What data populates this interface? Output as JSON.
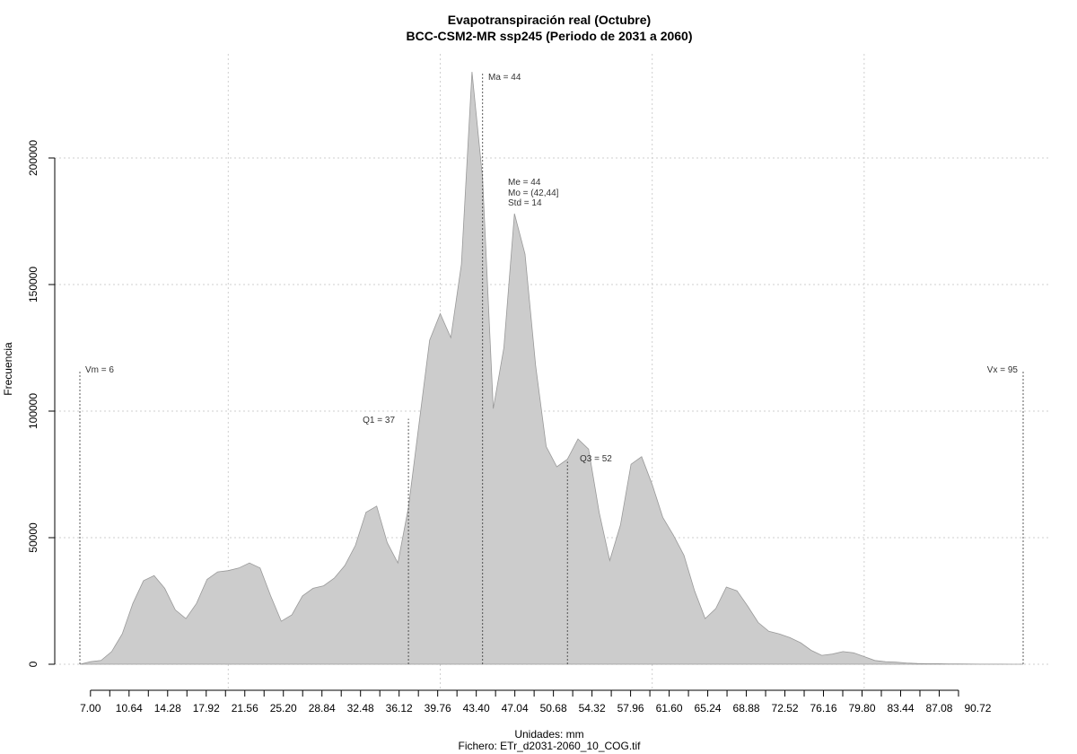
{
  "chart_data": {
    "type": "area",
    "title": "Evapotranspiración real (Octubre)",
    "subtitle": "BCC-CSM2-MR ssp245 (Periodo de 2031 a 2060)",
    "xlabel": "Unidades: mm",
    "caption": "Fichero: ETr_d2031-2060_10_COG.tif",
    "ylabel": "Frecuencia",
    "xlim": [
      5,
      97
    ],
    "ylim": [
      0,
      230000
    ],
    "grid": true,
    "fill_color": "#cccccc",
    "line_color": "#999999",
    "x_tick_labels": [
      "7.00",
      "10.64",
      "14.28",
      "17.92",
      "21.56",
      "25.20",
      "28.84",
      "32.48",
      "36.12",
      "39.76",
      "43.40",
      "47.04",
      "50.68",
      "54.32",
      "57.96",
      "61.60",
      "65.24",
      "68.88",
      "72.52",
      "76.16",
      "79.80",
      "83.44",
      "87.08",
      "90.72"
    ],
    "y_ticks": [
      0,
      50000,
      100000,
      150000,
      200000
    ],
    "y_tick_labels": [
      "0",
      "50000",
      "100000",
      "150000",
      "200000"
    ],
    "x_grid": [
      20,
      40,
      60,
      80
    ],
    "x": [
      6,
      7,
      8,
      9,
      10,
      11,
      12,
      13,
      14,
      15,
      16,
      17,
      18,
      19,
      20,
      21,
      22,
      23,
      24,
      25,
      26,
      27,
      28,
      29,
      30,
      31,
      32,
      33,
      34,
      35,
      36,
      37,
      38,
      39,
      40,
      41,
      42,
      43,
      44,
      45,
      46,
      47,
      48,
      49,
      50,
      51,
      52,
      53,
      54,
      55,
      56,
      57,
      58,
      59,
      60,
      61,
      62,
      63,
      64,
      65,
      66,
      67,
      68,
      69,
      70,
      71,
      72,
      73,
      74,
      75,
      76,
      77,
      78,
      79,
      80,
      81,
      82,
      83,
      84,
      85,
      86,
      87,
      88,
      89,
      90,
      91,
      92,
      93,
      94,
      95
    ],
    "y": [
      0,
      1000,
      1500,
      5000,
      12000,
      24000,
      33000,
      35000,
      30000,
      21500,
      18000,
      24000,
      33500,
      36500,
      37000,
      38000,
      40000,
      38000,
      27000,
      17000,
      19500,
      27000,
      30000,
      31000,
      34000,
      39000,
      47000,
      60000,
      62500,
      48000,
      40000,
      62000,
      95000,
      128000,
      138500,
      129000,
      158000,
      234000,
      192000,
      101000,
      125000,
      178000,
      162000,
      118000,
      86000,
      78000,
      81000,
      89000,
      85000,
      60000,
      41000,
      55000,
      79000,
      82000,
      71000,
      58000,
      51000,
      43000,
      29000,
      18000,
      22000,
      30500,
      29000,
      23000,
      16500,
      13000,
      12000,
      10500,
      8500,
      5500,
      3500,
      4000,
      5000,
      4500,
      3000,
      1500,
      1000,
      800,
      500,
      300,
      200,
      200,
      150,
      100,
      80,
      50,
      30,
      20,
      10,
      0
    ],
    "annotations": {
      "vm": {
        "label": "Vm = 6",
        "x": 6,
        "top": 116000
      },
      "q1": {
        "label": "Q1 = 37",
        "x": 37,
        "top": 97000
      },
      "ma": {
        "label": "Ma = 44",
        "x": 44,
        "top": 234000
      },
      "me": {
        "label": "Me = 44"
      },
      "mo": {
        "label": "Mo = (42,44]"
      },
      "std": {
        "label": "Std = 14"
      },
      "q3": {
        "label": "Q3 = 52",
        "x": 52,
        "top": 80000
      },
      "vx": {
        "label": "Vx = 95",
        "x": 95,
        "top": 116000
      }
    }
  }
}
